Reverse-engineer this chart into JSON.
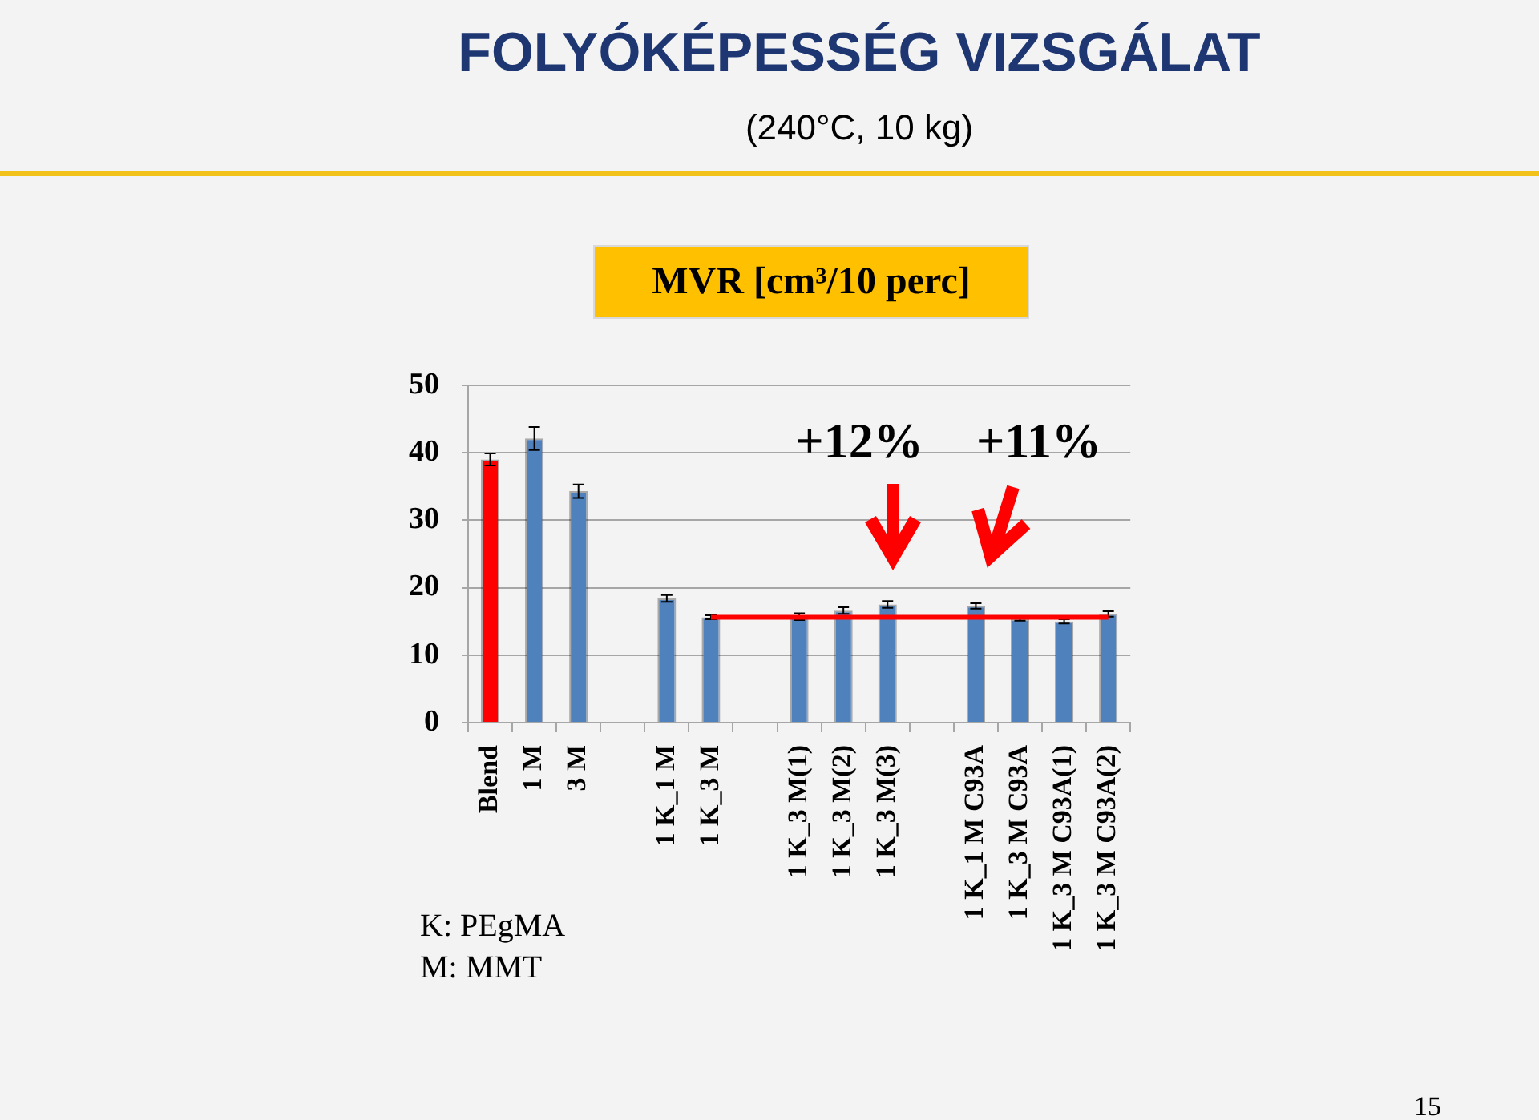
{
  "chart_data": {
    "type": "bar",
    "title": "FOLYÓKÉPESSÉG VIZSGÁLAT",
    "subtitle": "(240°C, 10 kg)",
    "ylabel": "MVR [cm³/10 perc]",
    "categories": [
      "Blend",
      "1 M",
      "3 M",
      null,
      "1 K_1 M",
      "1 K_3 M",
      null,
      "1 K_3 M(1)",
      "1 K_3 M(2)",
      "1 K_3 M(3)",
      null,
      "1 K_1 M C93A",
      "1 K_3 M C93A",
      "1 K_3 M C93A(1)",
      "1 K_3 M C93A(2)"
    ],
    "series": [
      {
        "colors": [
          "#ff0000",
          "#4f81bd",
          "#4f81bd",
          null,
          "#4f81bd",
          "#4f81bd",
          null,
          "#4f81bd",
          "#4f81bd",
          "#4f81bd",
          null,
          "#4f81bd",
          "#4f81bd",
          "#4f81bd",
          "#4f81bd"
        ],
        "values": [
          39.0,
          42.1,
          34.3,
          null,
          18.4,
          15.6,
          null,
          15.7,
          16.6,
          17.5,
          null,
          17.3,
          15.3,
          15.0,
          16.1
        ],
        "errors": [
          0.9,
          1.7,
          1.0,
          null,
          0.5,
          0.3,
          null,
          0.5,
          0.5,
          0.5,
          null,
          0.4,
          0.2,
          0.3,
          0.4
        ]
      },
      {
        "type": "line",
        "color": "#ff0000",
        "values": [
          null,
          null,
          null,
          null,
          null,
          15.6,
          15.6,
          15.6,
          15.6,
          15.6,
          15.6,
          15.6,
          15.6,
          15.6,
          15.6
        ]
      }
    ],
    "ylim": [
      0,
      50
    ],
    "yticks": [
      0,
      10,
      20,
      30,
      40,
      50
    ],
    "grid": "y",
    "annotations": [
      "+12%",
      "+11%",
      "K: PEgMA",
      "M: MMT",
      "15"
    ]
  }
}
